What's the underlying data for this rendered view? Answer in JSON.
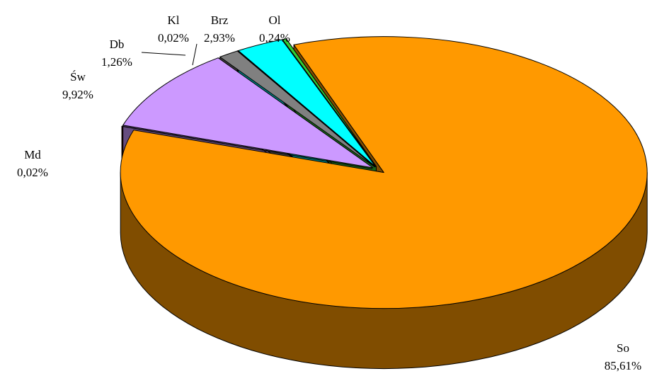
{
  "chart_data": {
    "type": "pie",
    "categories": [
      "So",
      "Md",
      "Św",
      "Db",
      "Kl",
      "Brz",
      "Ol"
    ],
    "values": [
      85.61,
      0.02,
      9.92,
      1.26,
      0.02,
      2.93,
      0.24
    ],
    "value_labels": [
      "85,61%",
      "0,02%",
      "9,92%",
      "1,26%",
      "0,02%",
      "2,93%",
      "0,24%"
    ],
    "colors": [
      "#ff9900",
      "#800000",
      "#cc99ff",
      "#808080",
      "#9966cc",
      "#00ffff",
      "#33cc33"
    ]
  }
}
